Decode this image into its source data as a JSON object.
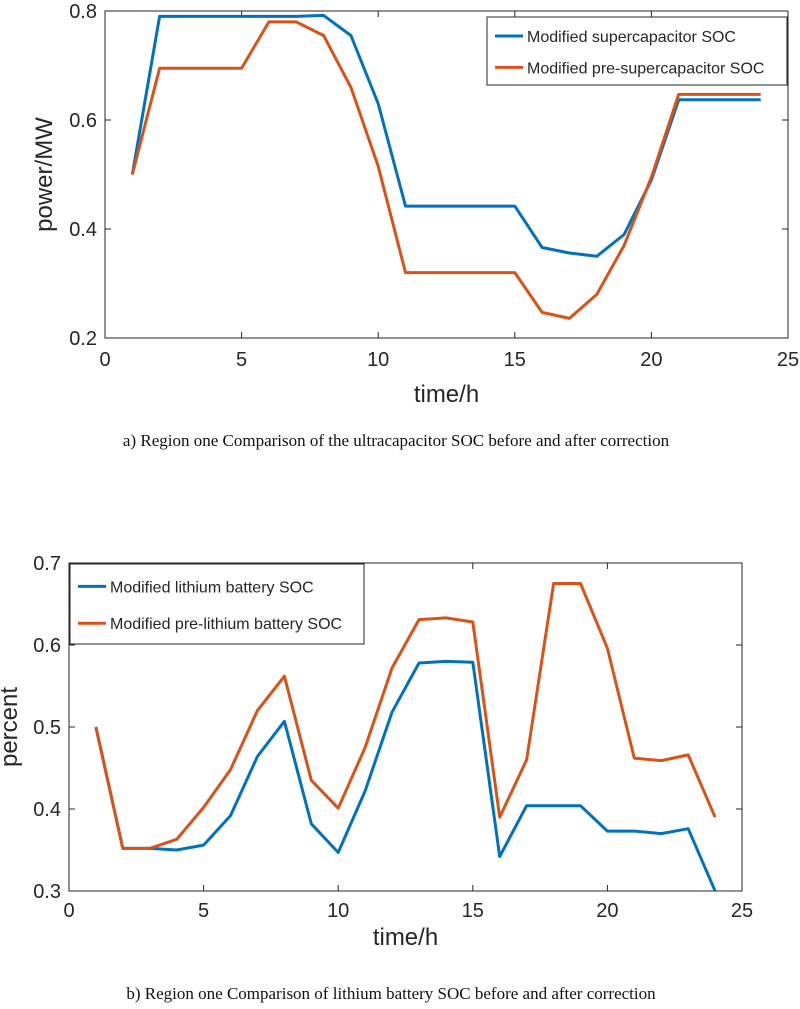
{
  "chart_data": [
    {
      "id": "a",
      "type": "line",
      "xlabel": "time/h",
      "ylabel": "power/MW",
      "xlim": [
        0,
        25
      ],
      "ylim": [
        0.2,
        0.8
      ],
      "xticks": [
        0,
        5,
        10,
        15,
        20,
        25
      ],
      "yticks": [
        0.2,
        0.4,
        0.6,
        0.8
      ],
      "legend_position": "top-right",
      "caption": "a) Region one Comparison of the ultracapacitor SOC before and after correction",
      "series": [
        {
          "name": "Modified supercapacitor SOC",
          "color": "#0072BD",
          "x": [
            1,
            2,
            3,
            4,
            5,
            6,
            7,
            8,
            9,
            10,
            11,
            12,
            13,
            14,
            15,
            16,
            17,
            18,
            19,
            20,
            21,
            22,
            23,
            24
          ],
          "y": [
            0.5,
            0.79,
            0.79,
            0.79,
            0.79,
            0.79,
            0.79,
            0.792,
            0.755,
            0.63,
            0.442,
            0.442,
            0.442,
            0.442,
            0.442,
            0.366,
            0.356,
            0.35,
            0.39,
            0.49,
            0.637,
            0.637,
            0.637,
            0.637
          ]
        },
        {
          "name": "Modified pre-supercapacitor SOC",
          "color": "#D95319",
          "x": [
            1,
            2,
            3,
            4,
            5,
            6,
            7,
            8,
            9,
            10,
            11,
            12,
            13,
            14,
            15,
            16,
            17,
            18,
            19,
            20,
            21,
            22,
            23,
            24
          ],
          "y": [
            0.5,
            0.695,
            0.695,
            0.695,
            0.695,
            0.78,
            0.78,
            0.755,
            0.66,
            0.515,
            0.32,
            0.32,
            0.32,
            0.32,
            0.32,
            0.247,
            0.236,
            0.28,
            0.37,
            0.495,
            0.647,
            0.647,
            0.647,
            0.647
          ]
        }
      ]
    },
    {
      "id": "b",
      "type": "line",
      "xlabel": "time/h",
      "ylabel": "percent",
      "xlim": [
        0,
        25
      ],
      "ylim": [
        0.3,
        0.7
      ],
      "xticks": [
        0,
        5,
        10,
        15,
        20,
        25
      ],
      "yticks": [
        0.3,
        0.4,
        0.5,
        0.6,
        0.7
      ],
      "legend_position": "top-left",
      "caption": "b) Region one Comparison of lithium battery SOC before and after correction",
      "series": [
        {
          "name": "Modified lithium battery SOC",
          "color": "#0072BD",
          "x": [
            1,
            2,
            3,
            4,
            5,
            6,
            7,
            8,
            9,
            10,
            11,
            12,
            13,
            14,
            15,
            16,
            17,
            18,
            19,
            20,
            21,
            22,
            23,
            24
          ],
          "y": [
            0.5,
            0.352,
            0.352,
            0.35,
            0.356,
            0.392,
            0.464,
            0.507,
            0.382,
            0.347,
            0.422,
            0.518,
            0.578,
            0.58,
            0.579,
            0.342,
            0.404,
            0.404,
            0.404,
            0.373,
            0.373,
            0.37,
            0.376,
            0.3
          ]
        },
        {
          "name": "Modified pre-lithium battery SOC",
          "color": "#D95319",
          "x": [
            1,
            2,
            3,
            4,
            5,
            6,
            7,
            8,
            9,
            10,
            11,
            12,
            13,
            14,
            15,
            16,
            17,
            18,
            19,
            20,
            21,
            22,
            23,
            24
          ],
          "y": [
            0.5,
            0.352,
            0.352,
            0.363,
            0.402,
            0.448,
            0.52,
            0.562,
            0.435,
            0.401,
            0.475,
            0.572,
            0.631,
            0.633,
            0.628,
            0.39,
            0.46,
            0.675,
            0.675,
            0.596,
            0.462,
            0.459,
            0.466,
            0.39
          ]
        }
      ]
    }
  ]
}
